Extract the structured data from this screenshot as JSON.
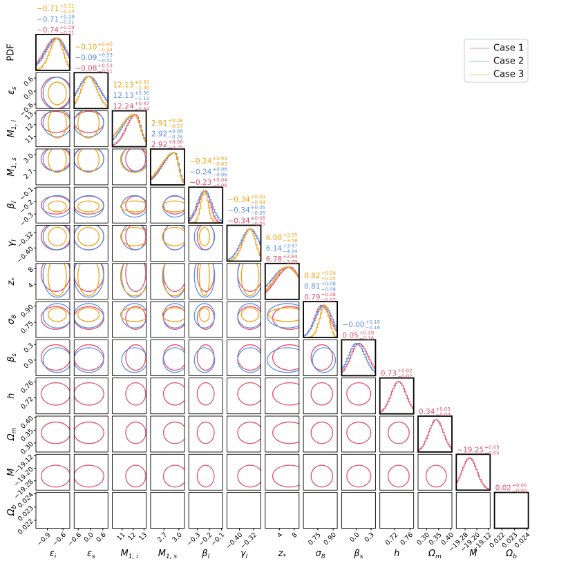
{
  "legend": {
    "position": "upper right"
  },
  "chart_data": {
    "type": "corner",
    "pdf_label": "PDF",
    "series": [
      {
        "name": "Case 1",
        "color": "#e0506e"
      },
      {
        "name": "Case 2",
        "color": "#5b8ee6"
      },
      {
        "name": "Case 3",
        "color": "#f5a010"
      }
    ],
    "parameters": [
      {
        "label": {
          "base": "ε",
          "sub": "i"
        },
        "lim": [
          -1.12,
          -0.47
        ],
        "ticks": [
          {
            "value": -0.9,
            "label": "−0.9"
          },
          {
            "value": -0.6,
            "label": "−0.6"
          }
        ],
        "estimates": [
          {
            "values": [
              -0.74,
              0.19,
              -0.21
            ],
            "value_labels": [
              "−0.74",
              "+0.19",
              "−0.21"
            ]
          },
          {
            "values": [
              -0.71,
              0.18,
              -0.21
            ],
            "value_labels": [
              "−0.71",
              "+0.18",
              "−0.21"
            ]
          },
          {
            "values": [
              -0.71,
              0.11,
              -0.14
            ],
            "value_labels": [
              "−0.71",
              "+0.11",
              "−0.14"
            ]
          }
        ]
      },
      {
        "label": {
          "base": "ε",
          "sub": "s"
        },
        "lim": [
          -0.8,
          0.85
        ],
        "ticks": [
          {
            "value": -0.6,
            "label": "−0.6"
          },
          {
            "value": 0,
            "label": "0.0"
          },
          0.6
        ],
        "estimates": [
          {
            "values": [
              -0.08,
              0.53,
              -0.51
            ],
            "value_labels": [
              "−0.08",
              "+0.53",
              "−0.51"
            ]
          },
          {
            "values": [
              -0.09,
              0.53,
              -0.51
            ],
            "value_labels": [
              "−0.09",
              "+0.53",
              "−0.51"
            ]
          },
          {
            "values": [
              -0.1,
              0.4,
              -0.34
            ],
            "value_labels": [
              "−0.10",
              "+0.40",
              "−0.34"
            ]
          }
        ]
      },
      {
        "label": {
          "base": "M",
          "sub": "1, i"
        },
        "lim": [
          10.1,
          13.2
        ],
        "ticks": [
          11,
          12,
          13
        ],
        "estimates": [
          {
            "values": [
              12.24,
              0.47,
              -0.84
            ],
            "value_labels": [
              "12.24",
              "+0.47",
              "−0.84"
            ]
          },
          {
            "values": [
              12.13,
              0.56,
              -1.13
            ],
            "value_labels": [
              "12.13",
              "+0.56",
              "−1.13"
            ]
          },
          {
            "values": [
              12.13,
              0.53,
              -1.3
            ],
            "value_labels": [
              "12.13",
              "+0.53",
              "−1.30"
            ]
          }
        ]
      },
      {
        "label": {
          "base": "M",
          "sub": "1, s"
        },
        "lim": [
          2.43,
          3.11
        ],
        "ticks": [
          2.7,
          {
            "value": 3,
            "label": "3.0"
          }
        ],
        "estimates": [
          {
            "values": [
              2.92,
              0.08,
              -0.25
            ],
            "value_labels": [
              "2.92",
              "+0.08",
              "−0.25"
            ]
          },
          {
            "values": [
              2.92,
              0.08,
              -0.26
            ],
            "value_labels": [
              "2.92",
              "+0.08",
              "−0.26"
            ]
          },
          {
            "values": [
              2.91,
              0.08,
              -0.27
            ],
            "value_labels": [
              "2.91",
              "+0.08",
              "−0.27"
            ]
          }
        ]
      },
      {
        "label": {
          "base": "β",
          "sub": "l"
        },
        "lim": [
          -0.37,
          -0.09
        ],
        "ticks": [
          {
            "value": -0.3,
            "label": "−0.3"
          },
          {
            "value": -0.2,
            "label": "−0.2"
          },
          {
            "value": -0.1,
            "label": "−0.1"
          }
        ],
        "estimates": [
          {
            "values": [
              -0.23,
              0.04,
              -0.06
            ],
            "value_labels": [
              "−0.23",
              "+0.04",
              "−0.06"
            ]
          },
          {
            "values": [
              -0.24,
              0.06,
              -0.06
            ],
            "value_labels": [
              "−0.24",
              "+0.06",
              "−0.06"
            ]
          },
          {
            "values": [
              -0.24,
              0.03,
              -0.03
            ],
            "value_labels": [
              "−0.24",
              "+0.03",
              "−0.03"
            ]
          }
        ]
      },
      {
        "label": {
          "base": "γ",
          "sub": "l"
        },
        "lim": [
          -0.47,
          -0.28
        ],
        "ticks": [
          {
            "value": -0.4,
            "label": "−0.40"
          },
          {
            "value": -0.32,
            "label": "−0.32"
          }
        ],
        "estimates": [
          {
            "values": [
              -0.34,
              0.05,
              -0.05
            ],
            "value_labels": [
              "−0.34",
              "+0.05",
              "−0.05"
            ]
          },
          {
            "values": [
              -0.34,
              0.05,
              -0.05
            ],
            "value_labels": [
              "−0.34",
              "+0.05",
              "−0.05"
            ]
          },
          {
            "values": [
              -0.34,
              0.03,
              -0.04
            ],
            "value_labels": [
              "−0.34",
              "+0.03",
              "−0.04"
            ]
          }
        ]
      },
      {
        "label": {
          "base": "z",
          "sub": "*"
        },
        "lim": [
          0.2,
          9.3
        ],
        "ticks": [
          4,
          8
        ],
        "estimates": [
          {
            "values": [
              6.78,
              2.84,
              -3.69
            ],
            "value_labels": [
              "6.78",
              "+2.84",
              "−3.69"
            ]
          },
          {
            "values": [
              6.14,
              3.47,
              -4.24
            ],
            "value_labels": [
              "6.14",
              "+3.47",
              "−4.24"
            ]
          },
          {
            "values": [
              6.08,
              3.55,
              -3.58
            ],
            "value_labels": [
              "6.08",
              "+3.55",
              "−3.58"
            ]
          }
        ]
      },
      {
        "label": {
          "base": "σ",
          "sub": "8"
        },
        "lim": [
          0.61,
          0.94
        ],
        "ticks": [
          0.75,
          {
            "value": 0.9,
            "label": "0.90"
          }
        ],
        "estimates": [
          {
            "values": [
              0.79,
              0.08,
              -0.07
            ],
            "value_labels": [
              "0.79",
              "+0.08",
              "−0.07"
            ]
          },
          {
            "values": [
              0.81,
              0.08,
              -0.08
            ],
            "value_labels": [
              "0.81",
              "+0.08",
              "−0.08"
            ]
          },
          {
            "values": [
              0.82,
              0.04,
              -0.05
            ],
            "value_labels": [
              "0.82",
              "+0.04",
              "−0.05"
            ]
          }
        ]
      },
      {
        "label": {
          "base": "β",
          "sub": "s"
        },
        "lim": [
          -0.3,
          0.39
        ],
        "ticks": [
          {
            "value": 0,
            "label": "0.0"
          },
          0.3
        ],
        "estimates": [
          {
            "values": [
              0.05,
              0.19,
              -0.16
            ],
            "value_labels": [
              "0.05",
              "+0.19",
              "−0.16"
            ]
          },
          {
            "values": [
              0,
              0.18,
              -0.16
            ],
            "value_labels": [
              "−0.00",
              "+0.18",
              "−0.16"
            ]
          },
          null
        ]
      },
      {
        "label": {
          "base": "h"
        },
        "lim": [
          0.68,
          0.77
        ],
        "ticks": [
          0.72,
          0.76
        ],
        "estimates": [
          {
            "values": [
              0.73,
              0.02,
              -0.02
            ],
            "value_labels": [
              "0.73",
              "+0.02",
              "−0.02"
            ]
          },
          null,
          null
        ]
      },
      {
        "label": {
          "base": "Ω",
          "sub": "m"
        },
        "lim": [
          0.265,
          0.405
        ],
        "ticks": [
          {
            "value": 0.3,
            "label": "0.30"
          },
          0.35,
          {
            "value": 0.4,
            "label": "0.40"
          }
        ],
        "estimates": [
          {
            "values": [
              0.34,
              0.03,
              -0.03
            ],
            "value_labels": [
              "0.34",
              "+0.03",
              "−0.03"
            ]
          },
          null,
          null
        ]
      },
      {
        "label": {
          "base": "M"
        },
        "lim": [
          -19.34,
          -19.11
        ],
        "ticks": [
          {
            "value": -19.28,
            "label": "−19.28"
          },
          {
            "value": -19.2,
            "label": "−19.20"
          },
          {
            "value": -19.12,
            "label": "−19.12"
          }
        ],
        "estimates": [
          {
            "values": [
              -19.25,
              0.05,
              -0.05
            ],
            "value_labels": [
              "−19.25",
              "+0.05",
              "−0.05"
            ]
          },
          null,
          null
        ]
      },
      {
        "label": {
          "base": "Ω",
          "sub": "b"
        },
        "lim": [
          0.0214,
          0.0241
        ],
        "ticks": [
          0.022,
          0.023,
          0.024
        ],
        "estimates": [
          {
            "values": [
              0.02,
              0,
              0
            ],
            "value_labels": [
              "0.02",
              "+0.00",
              "−0.00"
            ]
          },
          null,
          null
        ]
      }
    ]
  }
}
